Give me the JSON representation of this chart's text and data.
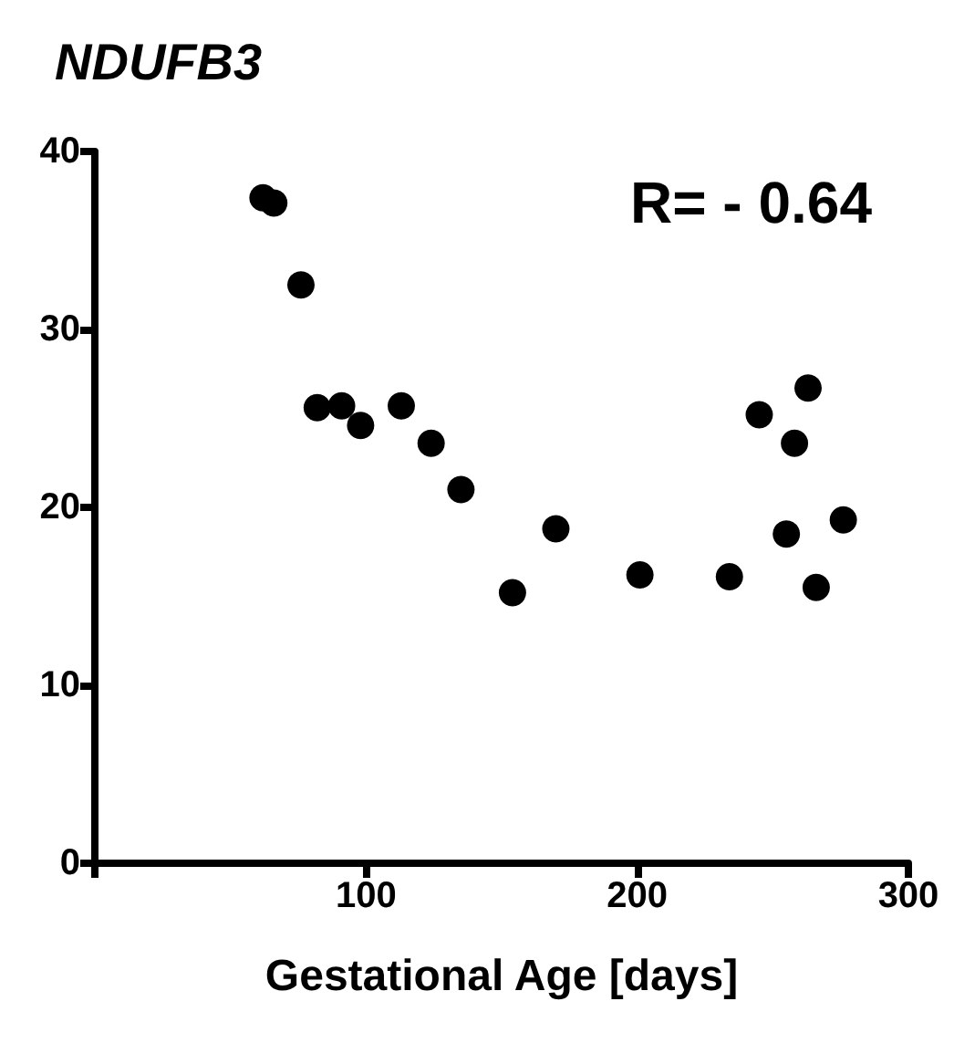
{
  "chart_data": {
    "type": "scatter",
    "title": "NDUFB3",
    "xlabel": "Gestational Age [days]",
    "annotations": [
      "R= - 0.64"
    ],
    "x": [
      62,
      66,
      76,
      82,
      91,
      98,
      113,
      124,
      135,
      154,
      170,
      201,
      234,
      245,
      255,
      258,
      263,
      266,
      276
    ],
    "values": [
      37.4,
      37.1,
      32.5,
      25.6,
      25.7,
      24.6,
      25.7,
      23.6,
      21.0,
      15.2,
      18.8,
      16.2,
      16.1,
      25.2,
      18.5,
      23.6,
      26.7,
      15.5,
      19.3
    ],
    "color": "#000000",
    "marker": "circle",
    "xlim": [
      0,
      300
    ],
    "xticks": [
      {
        "value": 0,
        "label": null
      },
      100,
      200,
      300
    ],
    "ylim": [
      0,
      40
    ],
    "yticks": [
      0,
      10,
      20,
      30,
      40
    ]
  }
}
